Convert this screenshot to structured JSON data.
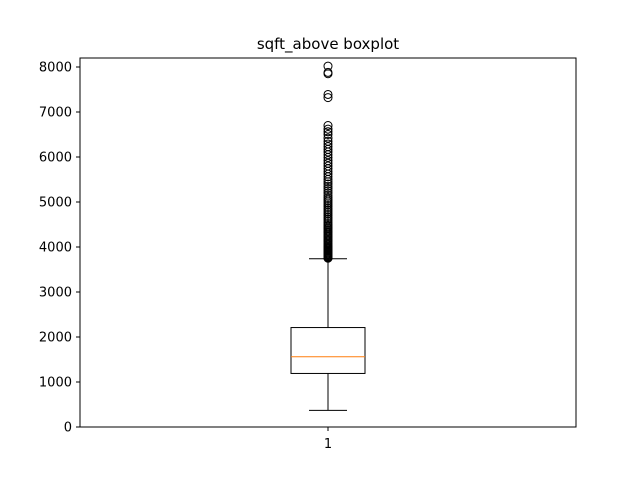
{
  "chart_data": {
    "type": "box",
    "title": "sqft_above boxplot",
    "xlabel": "",
    "ylabel": "",
    "categories": [
      "1"
    ],
    "ylim": [
      0,
      8200
    ],
    "yticks": [
      0,
      1000,
      2000,
      3000,
      4000,
      5000,
      6000,
      7000,
      8000
    ],
    "grid": false,
    "boxes": [
      {
        "category": "1",
        "whisker_low": 370,
        "q1": 1190,
        "median": 1560,
        "q3": 2210,
        "whisker_high": 3740,
        "outliers": [
          3750,
          3760,
          3770,
          3780,
          3790,
          3800,
          3820,
          3840,
          3860,
          3880,
          3900,
          3920,
          3940,
          3960,
          3980,
          4000,
          4020,
          4050,
          4080,
          4110,
          4140,
          4170,
          4200,
          4230,
          4260,
          4290,
          4320,
          4350,
          4380,
          4410,
          4440,
          4470,
          4500,
          4540,
          4580,
          4620,
          4660,
          4700,
          4740,
          4780,
          4820,
          4860,
          4900,
          4940,
          4980,
          5020,
          5060,
          5100,
          5150,
          5200,
          5250,
          5300,
          5350,
          5400,
          5450,
          5500,
          5560,
          5620,
          5680,
          5740,
          5800,
          5860,
          5920,
          5990,
          6050,
          6110,
          6170,
          6230,
          6290,
          6350,
          6420,
          6500,
          6560,
          6620,
          6700,
          7320,
          7390,
          7850,
          7880,
          8020
        ]
      }
    ],
    "colors": {
      "box": "#000000",
      "median": "#ff7f0e",
      "outlier": "#000000"
    }
  }
}
